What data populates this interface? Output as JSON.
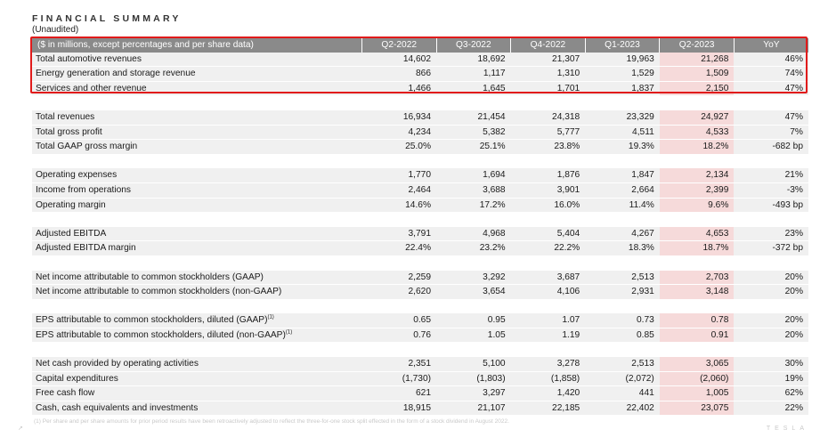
{
  "title": "FINANCIAL SUMMARY",
  "subtitle": "(Unaudited)",
  "header": [
    "($ in millions, except percentages and per share data)",
    "Q2-2022",
    "Q3-2022",
    "Q4-2022",
    "Q1-2023",
    "Q2-2023",
    "YoY"
  ],
  "groups": [
    [
      {
        "label": "Total automotive revenues",
        "values": [
          "14,602",
          "18,692",
          "21,307",
          "19,963",
          "21,268",
          "46%"
        ]
      },
      {
        "label": "Energy generation and storage revenue",
        "values": [
          "866",
          "1,117",
          "1,310",
          "1,529",
          "1,509",
          "74%"
        ]
      },
      {
        "label": "Services and other revenue",
        "values": [
          "1,466",
          "1,645",
          "1,701",
          "1,837",
          "2,150",
          "47%"
        ]
      }
    ],
    [
      {
        "label": "Total revenues",
        "values": [
          "16,934",
          "21,454",
          "24,318",
          "23,329",
          "24,927",
          "47%"
        ]
      },
      {
        "label": "Total gross profit",
        "values": [
          "4,234",
          "5,382",
          "5,777",
          "4,511",
          "4,533",
          "7%"
        ]
      },
      {
        "label": "Total GAAP gross margin",
        "values": [
          "25.0%",
          "25.1%",
          "23.8%",
          "19.3%",
          "18.2%",
          "-682 bp"
        ]
      }
    ],
    [
      {
        "label": "Operating expenses",
        "values": [
          "1,770",
          "1,694",
          "1,876",
          "1,847",
          "2,134",
          "21%"
        ]
      },
      {
        "label": "Income from operations",
        "values": [
          "2,464",
          "3,688",
          "3,901",
          "2,664",
          "2,399",
          "-3%"
        ]
      },
      {
        "label": "Operating margin",
        "values": [
          "14.6%",
          "17.2%",
          "16.0%",
          "11.4%",
          "9.6%",
          "-493 bp"
        ]
      }
    ],
    [
      {
        "label": "Adjusted EBITDA",
        "values": [
          "3,791",
          "4,968",
          "5,404",
          "4,267",
          "4,653",
          "23%"
        ]
      },
      {
        "label": "Adjusted EBITDA margin",
        "values": [
          "22.4%",
          "23.2%",
          "22.2%",
          "18.3%",
          "18.7%",
          "-372 bp"
        ]
      }
    ],
    [
      {
        "label": "Net income attributable to common stockholders (GAAP)",
        "values": [
          "2,259",
          "3,292",
          "3,687",
          "2,513",
          "2,703",
          "20%"
        ]
      },
      {
        "label": "Net income attributable to common stockholders (non-GAAP)",
        "values": [
          "2,620",
          "3,654",
          "4,106",
          "2,931",
          "3,148",
          "20%"
        ]
      }
    ],
    [
      {
        "label": "EPS attributable to common stockholders, diluted (GAAP)",
        "sup": "(1)",
        "values": [
          "0.65",
          "0.95",
          "1.07",
          "0.73",
          "0.78",
          "20%"
        ]
      },
      {
        "label": "EPS attributable to common stockholders, diluted (non-GAAP)",
        "sup": "(1)",
        "values": [
          "0.76",
          "1.05",
          "1.19",
          "0.85",
          "0.91",
          "20%"
        ]
      }
    ],
    [
      {
        "label": "Net cash provided by operating activities",
        "values": [
          "2,351",
          "5,100",
          "3,278",
          "2,513",
          "3,065",
          "30%"
        ]
      },
      {
        "label": "Capital expenditures",
        "values": [
          "(1,730)",
          "(1,803)",
          "(1,858)",
          "(2,072)",
          "(2,060)",
          "19%"
        ]
      },
      {
        "label": "Free cash flow",
        "values": [
          "621",
          "3,297",
          "1,420",
          "441",
          "1,005",
          "62%"
        ]
      },
      {
        "label": "Cash, cash equivalents and investments",
        "values": [
          "18,915",
          "21,107",
          "22,185",
          "22,402",
          "23,075",
          "22%"
        ]
      }
    ]
  ],
  "highlight_column_index": 4,
  "footnote": "(1) Per share and per share amounts for prior period results have been retroactively adjusted to reflect the three-for-one stock split effected in the form of a stock dividend in August 2022.",
  "brand": "TESLA",
  "colors": {
    "header_bg": "#8a8a8a",
    "row_bg": "#f0f0f0",
    "highlight_bg": "#f6dada",
    "box_border": "#e11b1b"
  }
}
